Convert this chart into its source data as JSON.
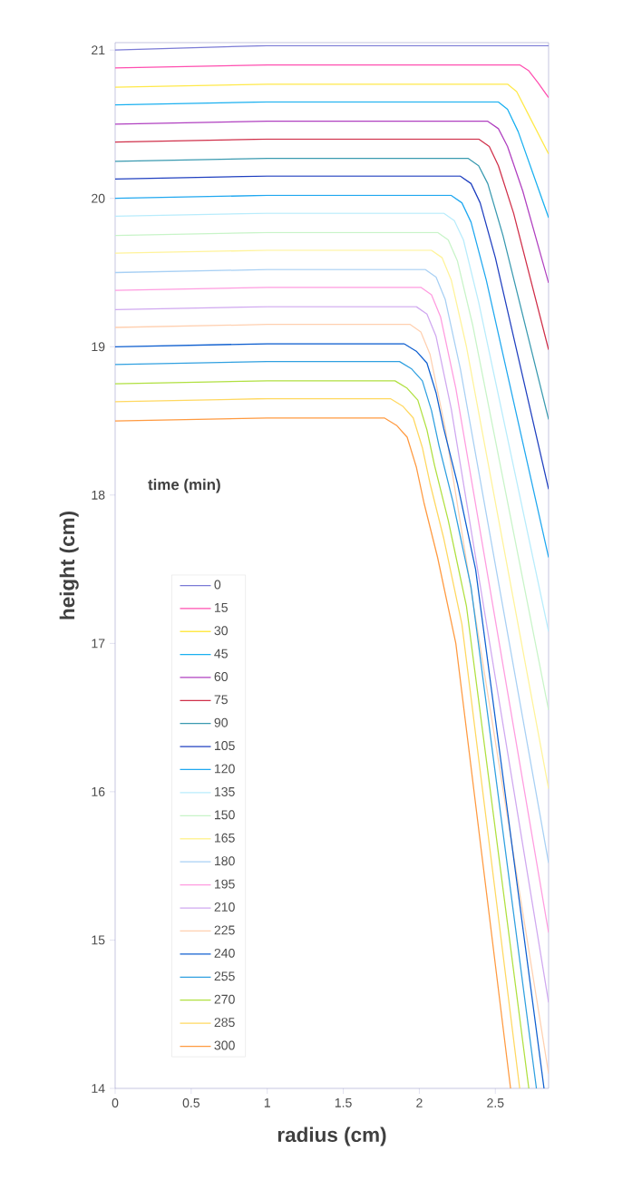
{
  "chart_data": {
    "type": "line",
    "xlabel": "radius (cm)",
    "ylabel": "height (cm)",
    "legend_title": "time (min)",
    "xlim": [
      0,
      2.85
    ],
    "ylim": [
      14,
      21.05
    ],
    "xticks": [
      0,
      0.5,
      1,
      1.5,
      2,
      2.5
    ],
    "yticks": [
      14,
      15,
      16,
      17,
      18,
      19,
      20,
      21
    ],
    "grid": false,
    "legend": "bottom left",
    "marker": "none",
    "line_style": "solid",
    "series": [
      {
        "name": "0",
        "color": "#7b7bd6",
        "x": [
          0,
          1,
          2.85
        ],
        "values": [
          21,
          21.03,
          21.03
        ]
      },
      {
        "name": "15",
        "color": "#ff4fb0",
        "x": [
          0,
          1,
          2.66,
          2.72,
          2.78,
          2.85
        ],
        "values": [
          20.88,
          20.9,
          20.9,
          20.86,
          20.78,
          20.68
        ]
      },
      {
        "name": "30",
        "color": "#ffe94a",
        "x": [
          0,
          1,
          2.58,
          2.64,
          2.7,
          2.85
        ],
        "values": [
          20.75,
          20.77,
          20.77,
          20.72,
          20.6,
          20.3
        ]
      },
      {
        "name": "45",
        "color": "#1ab0f0",
        "x": [
          0,
          1,
          2.52,
          2.58,
          2.65,
          2.85
        ],
        "values": [
          20.63,
          20.65,
          20.65,
          20.6,
          20.45,
          19.87
        ]
      },
      {
        "name": "60",
        "color": "#b040c0",
        "x": [
          0,
          1,
          2.45,
          2.52,
          2.58,
          2.68,
          2.85
        ],
        "values": [
          20.5,
          20.52,
          20.52,
          20.47,
          20.35,
          20.05,
          19.43
        ]
      },
      {
        "name": "75",
        "color": "#d0304a",
        "x": [
          0,
          1,
          2.39,
          2.46,
          2.52,
          2.62,
          2.85
        ],
        "values": [
          20.38,
          20.4,
          20.4,
          20.35,
          20.22,
          19.9,
          18.98
        ]
      },
      {
        "name": "90",
        "color": "#3a9ab0",
        "x": [
          0,
          1,
          2.32,
          2.39,
          2.45,
          2.55,
          2.85
        ],
        "values": [
          20.25,
          20.27,
          20.27,
          20.22,
          20.1,
          19.75,
          18.51
        ]
      },
      {
        "name": "105",
        "color": "#2040c0",
        "x": [
          0,
          1,
          2.27,
          2.34,
          2.4,
          2.5,
          2.85
        ],
        "values": [
          20.13,
          20.15,
          20.15,
          20.1,
          19.97,
          19.6,
          18.04
        ]
      },
      {
        "name": "120",
        "color": "#20a8f0",
        "x": [
          0,
          1,
          2.21,
          2.28,
          2.34,
          2.44,
          2.85
        ],
        "values": [
          20.0,
          20.02,
          20.02,
          19.97,
          19.84,
          19.45,
          17.58
        ]
      },
      {
        "name": "135",
        "color": "#b8ecfc",
        "x": [
          0,
          1,
          2.16,
          2.23,
          2.29,
          2.39,
          2.85
        ],
        "values": [
          19.88,
          19.9,
          19.9,
          19.85,
          19.72,
          19.3,
          17.08
        ]
      },
      {
        "name": "150",
        "color": "#c8f4c8",
        "x": [
          0,
          1,
          2.12,
          2.19,
          2.25,
          2.35,
          2.85
        ],
        "values": [
          19.75,
          19.77,
          19.77,
          19.72,
          19.58,
          19.15,
          16.55
        ]
      },
      {
        "name": "165",
        "color": "#fff39a",
        "x": [
          0,
          1,
          2.08,
          2.15,
          2.21,
          2.31,
          2.85
        ],
        "values": [
          19.63,
          19.65,
          19.65,
          19.6,
          19.45,
          19.0,
          16.02
        ]
      },
      {
        "name": "180",
        "color": "#a8d0f4",
        "x": [
          0,
          1,
          2.04,
          2.11,
          2.17,
          2.27,
          2.85
        ],
        "values": [
          19.5,
          19.52,
          19.52,
          19.47,
          19.32,
          18.85,
          15.52
        ]
      },
      {
        "name": "195",
        "color": "#ff9ce0",
        "x": [
          0,
          1,
          2.01,
          2.08,
          2.14,
          2.24,
          2.85
        ],
        "values": [
          19.38,
          19.4,
          19.4,
          19.35,
          19.2,
          18.72,
          15.05
        ]
      },
      {
        "name": "210",
        "color": "#d0a8f0",
        "x": [
          0,
          1,
          1.98,
          2.05,
          2.11,
          2.21,
          2.85
        ],
        "values": [
          19.25,
          19.27,
          19.27,
          19.22,
          19.07,
          18.58,
          14.58
        ]
      },
      {
        "name": "225",
        "color": "#ffd0b0",
        "x": [
          0,
          1,
          1.94,
          2.01,
          2.07,
          2.17,
          2.85
        ],
        "values": [
          19.13,
          19.15,
          19.15,
          19.1,
          18.95,
          18.45,
          14.1
        ]
      },
      {
        "name": "240",
        "color": "#1060d0",
        "x": [
          0,
          1,
          1.9,
          1.98,
          2.05,
          2.11,
          2.16,
          2.25,
          2.37,
          2.82
        ],
        "values": [
          19.0,
          19.02,
          19.02,
          18.97,
          18.89,
          18.69,
          18.45,
          18.08,
          17.5,
          14.0
        ]
      },
      {
        "name": "255",
        "color": "#30a0e0",
        "x": [
          0,
          1,
          1.87,
          1.95,
          2.02,
          2.08,
          2.13,
          2.22,
          2.34,
          2.77
        ],
        "values": [
          18.88,
          18.9,
          18.9,
          18.85,
          18.77,
          18.57,
          18.33,
          17.96,
          17.38,
          14.0
        ]
      },
      {
        "name": "270",
        "color": "#b0e040",
        "x": [
          0,
          1,
          1.84,
          1.92,
          1.99,
          2.05,
          2.1,
          2.19,
          2.31,
          2.72
        ],
        "values": [
          18.75,
          18.77,
          18.77,
          18.72,
          18.64,
          18.44,
          18.2,
          17.83,
          17.25,
          14.0
        ]
      },
      {
        "name": "285",
        "color": "#ffd860",
        "x": [
          0,
          1,
          1.81,
          1.89,
          1.96,
          2.02,
          2.07,
          2.16,
          2.28,
          2.66
        ],
        "values": [
          18.63,
          18.65,
          18.65,
          18.6,
          18.52,
          18.32,
          18.08,
          17.71,
          17.13,
          14.0
        ]
      },
      {
        "name": "300",
        "color": "#ff9a40",
        "x": [
          0,
          1,
          1.77,
          1.85,
          1.92,
          1.98,
          2.03,
          2.12,
          2.24,
          2.6
        ],
        "values": [
          18.5,
          18.52,
          18.52,
          18.47,
          18.39,
          18.19,
          17.95,
          17.58,
          17.0,
          14.0
        ]
      }
    ]
  }
}
